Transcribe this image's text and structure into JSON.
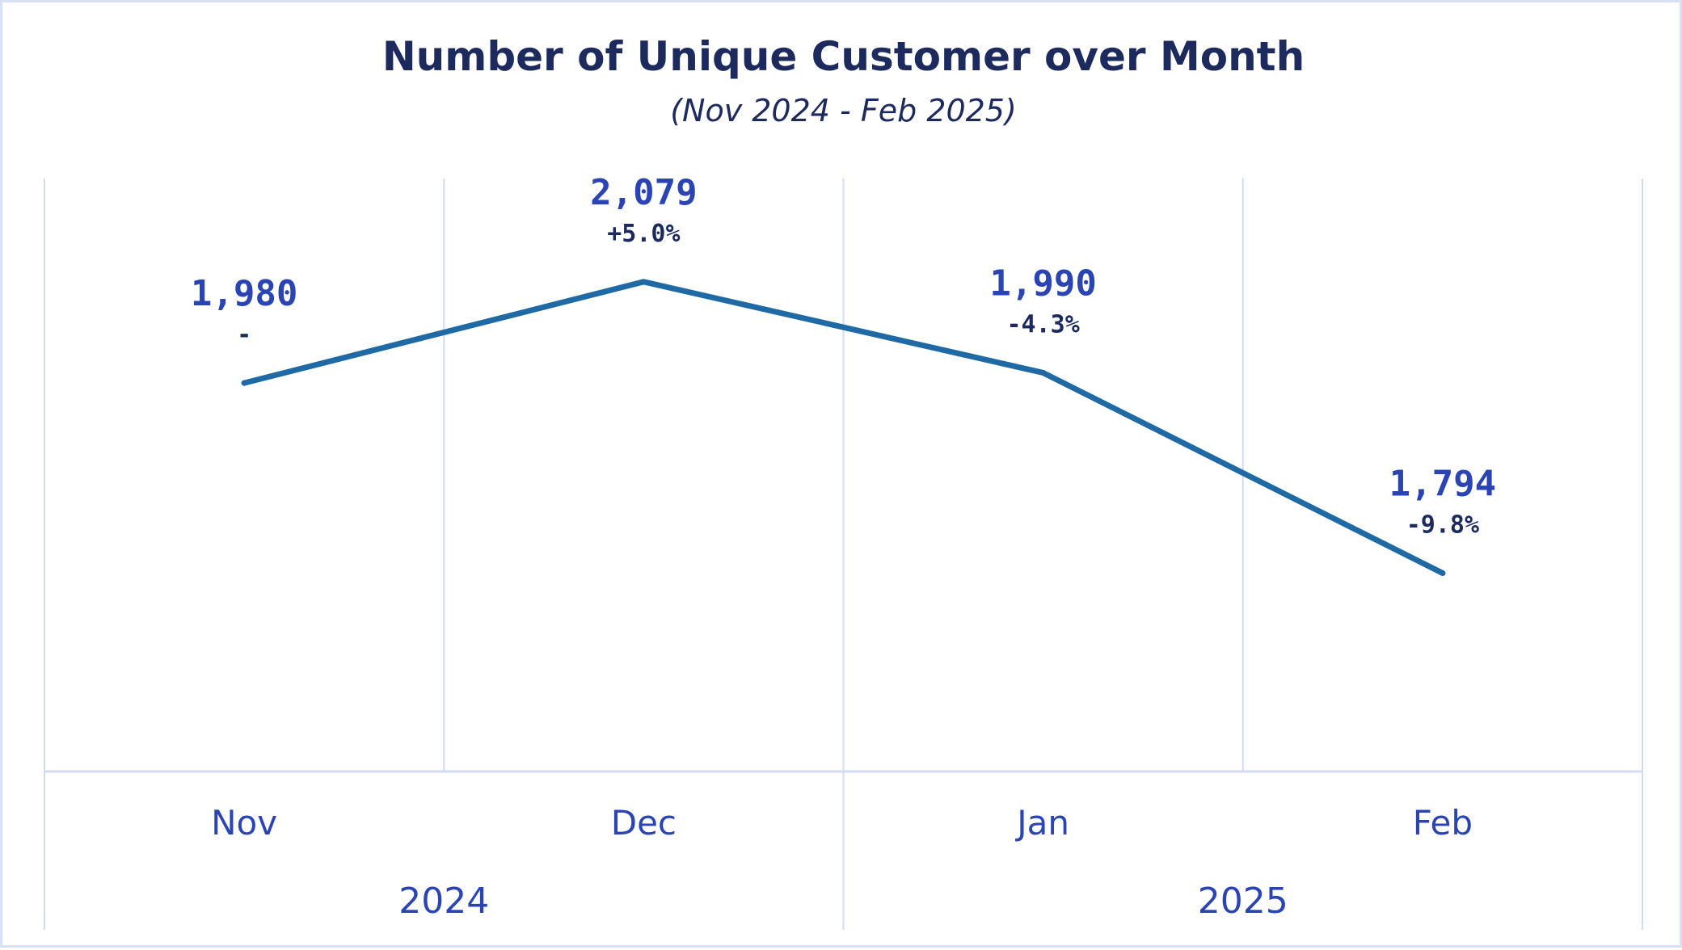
{
  "title": "Number of Unique Customer over Month",
  "subtitle": "(Nov 2024 - Feb 2025)",
  "colors": {
    "line": "#1f6aa5",
    "value_label": "#2a44b3",
    "change_label": "#1c2a5e",
    "axis_text": "#2a44b3",
    "grid": "#d3dcf2",
    "border": "#d8e0f3"
  },
  "chart_data": {
    "type": "line",
    "title": "Number of Unique Customer over Month",
    "subtitle": "(Nov 2024 - Feb 2025)",
    "categories": [
      "Nov",
      "Dec",
      "Jan",
      "Feb"
    ],
    "years": [
      {
        "label": "2024",
        "months": [
          "Nov",
          "Dec"
        ]
      },
      {
        "label": "2025",
        "months": [
          "Jan",
          "Feb"
        ]
      }
    ],
    "series": [
      {
        "values": [
          1980,
          2079,
          1990,
          1794
        ],
        "value_labels": [
          "1,980",
          "2,079",
          "1,990",
          "1,794"
        ],
        "change_labels": [
          "-",
          "+5.0%",
          "-4.3%",
          "-9.8%"
        ]
      }
    ],
    "ylim": [
      1600,
      2180
    ],
    "grid": true,
    "legend": "none"
  }
}
